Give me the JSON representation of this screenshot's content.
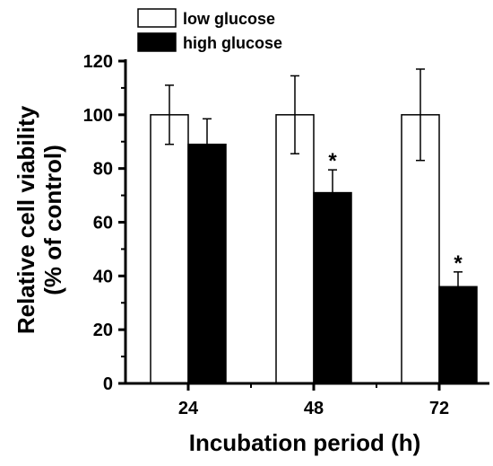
{
  "chart_data": {
    "type": "bar",
    "categories": [
      "24",
      "48",
      "72"
    ],
    "series": [
      {
        "name": "low glucose",
        "values": [
          100,
          100,
          100
        ],
        "errors": [
          11,
          14.5,
          17
        ],
        "color": "#ffffff"
      },
      {
        "name": "high glucose",
        "values": [
          89,
          71,
          36
        ],
        "errors": [
          9.5,
          8.5,
          5.5
        ],
        "color": "#000000"
      }
    ],
    "significance": [
      {
        "series": 1,
        "category": 1,
        "mark": "*"
      },
      {
        "series": 1,
        "category": 2,
        "mark": "*"
      }
    ],
    "xlabel": "Incubation period (h)",
    "ylabel_line1": "Relative cell viability",
    "ylabel_line2": "(% of control)",
    "ylim": [
      0,
      120
    ],
    "yticks": [
      0,
      20,
      40,
      60,
      80,
      100,
      120
    ],
    "legend_position": "top-center",
    "grid": false
  }
}
